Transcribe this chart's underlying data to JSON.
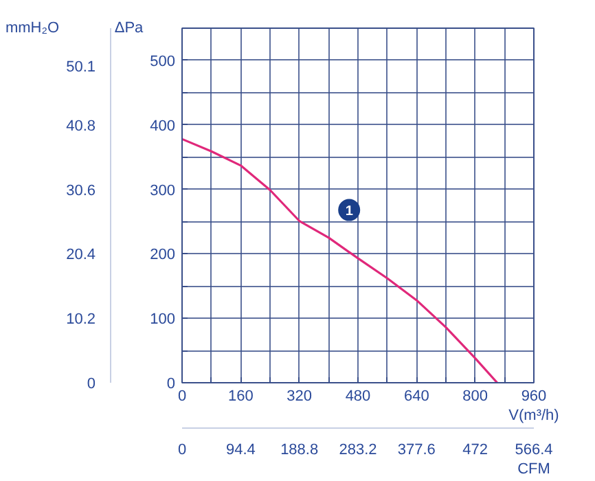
{
  "chart_data": {
    "type": "line",
    "x": [
      0,
      80,
      160,
      240,
      320,
      400,
      480,
      560,
      640,
      720,
      800,
      860
    ],
    "series": [
      {
        "color": "#e0287a",
        "values": [
          378,
          359,
          337,
          299,
          251,
          225,
          193,
          162,
          128,
          86,
          38,
          0
        ]
      }
    ],
    "xlim": [
      0,
      960
    ],
    "xticks": [
      0,
      {
        "value": 80,
        "label": null
      },
      160,
      {
        "value": 240,
        "label": null
      },
      320,
      {
        "value": 400,
        "label": null
      },
      480,
      {
        "value": 560,
        "label": null
      },
      640,
      {
        "value": 720,
        "label": null
      },
      800,
      {
        "value": 880,
        "label": null
      },
      960
    ],
    "ylim": [
      0,
      550
    ],
    "yticks": [
      0,
      {
        "value": 50,
        "label": null
      },
      100,
      {
        "value": 150,
        "label": null
      },
      200,
      {
        "value": 250,
        "label": null
      },
      300,
      {
        "value": 350,
        "label": null
      },
      400,
      {
        "value": 450,
        "label": null
      },
      500
    ],
    "y2lim": [
      0,
      56.1
    ],
    "y2ticks": [
      0,
      10.2,
      20.4,
      30.6,
      40.8,
      50.1
    ],
    "x2lim": [
      0,
      566.4
    ],
    "x2ticks": [
      0,
      94.4,
      188.8,
      283.2,
      377.6,
      472,
      566.4
    ],
    "xlabel": "V(m³/h)",
    "x2label": "CFM",
    "ylabel": "ΔPa",
    "y2label": "mmH₂O",
    "annotations": [
      {
        "text": "1",
        "x": 456,
        "y": 268
      }
    ],
    "grid": true,
    "marker": "none",
    "line_style": "solid"
  }
}
